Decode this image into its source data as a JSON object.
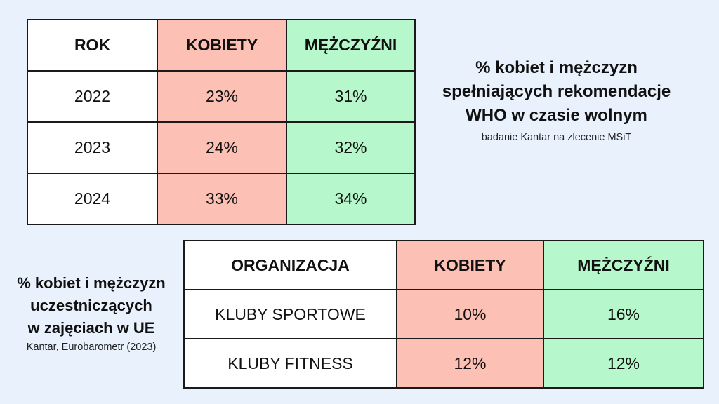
{
  "chart_data": [
    {
      "type": "table",
      "title": "% kobiet i mężczyzn spełniających rekomendacje WHO w czasie wolnym",
      "subtitle": "badanie Kantar na zlecenie MSiT",
      "columns": [
        "ROK",
        "KOBIETY",
        "MĘŻCZYŹNI"
      ],
      "rows": [
        [
          "2022",
          "23%",
          "31%"
        ],
        [
          "2023",
          "24%",
          "32%"
        ],
        [
          "2024",
          "33%",
          "34%"
        ]
      ]
    },
    {
      "type": "table",
      "title": "% kobiet i mężczyzn uczestniczących w zajęciach w UE",
      "subtitle": "Kantar, Eurobarometr (2023)",
      "columns": [
        "ORGANIZACJA",
        "KOBIETY",
        "MĘŻCZYŹNI"
      ],
      "rows": [
        [
          "KLUBY SPORTOWE",
          "10%",
          "16%"
        ],
        [
          "KLUBY FITNESS",
          "12%",
          "12%"
        ]
      ]
    }
  ],
  "captions": {
    "table1": {
      "title_lines": [
        "% kobiet i mężczyzn",
        "spełniających rekomendacje",
        "WHO w czasie wolnym"
      ],
      "source": "badanie Kantar na zlecenie MSiT"
    },
    "table2": {
      "title_lines": [
        "% kobiet i mężczyzn",
        "uczestniczących",
        "w zajęciach w UE"
      ],
      "source": "Kantar, Eurobarometr (2023)"
    }
  },
  "colors": {
    "background": "#e9f1fd",
    "women_column": "#fdc0b4",
    "men_column": "#b6f8cb",
    "label_column": "#ffffff",
    "border": "#1a1a1a"
  }
}
